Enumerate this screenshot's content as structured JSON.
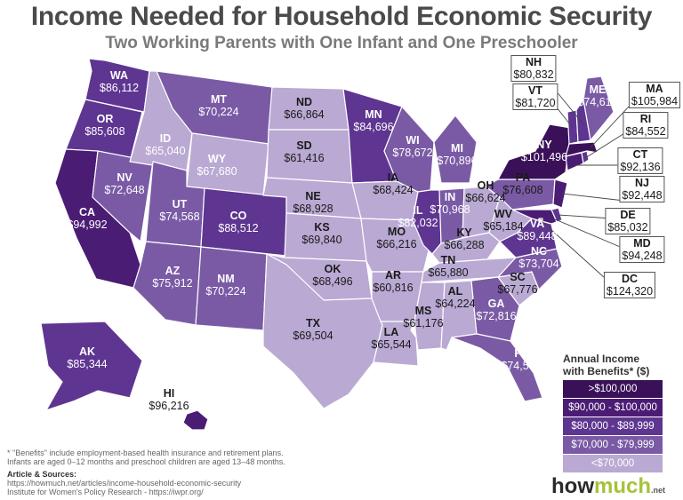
{
  "title": "Income Needed for Household Economic Security",
  "subtitle": "Two Working Parents with One Infant and One Preschooler",
  "colors": {
    "over100": "#3a1159",
    "90to100": "#4b1c74",
    "80to90": "#5e3590",
    "70to80": "#7a5aa5",
    "under70": "#b9a9d3"
  },
  "legend": {
    "title": "Annual Income with Benefits* ($)",
    "items": [
      {
        "label": ">$100,000",
        "color": "#3a1159"
      },
      {
        "label": "$90,000 - $100,000",
        "color": "#4b1c74"
      },
      {
        "label": "$80,000 - $89,999",
        "color": "#5e3590"
      },
      {
        "label": "$70,000 - $79,999",
        "color": "#7a5aa5"
      },
      {
        "label": "<$70,000",
        "color": "#b9a9d3"
      }
    ]
  },
  "states": {
    "WA": {
      "abbr": "WA",
      "value": "$86,112"
    },
    "OR": {
      "abbr": "OR",
      "value": "$85,608"
    },
    "CA": {
      "abbr": "CA",
      "value": "$94,992"
    },
    "NV": {
      "abbr": "NV",
      "value": "$72,648"
    },
    "ID": {
      "abbr": "ID",
      "value": "$65,040"
    },
    "MT": {
      "abbr": "MT",
      "value": "$70,224"
    },
    "WY": {
      "abbr": "WY",
      "value": "$67,680"
    },
    "UT": {
      "abbr": "UT",
      "value": "$74,568"
    },
    "CO": {
      "abbr": "CO",
      "value": "$88,512"
    },
    "AZ": {
      "abbr": "AZ",
      "value": "$75,912"
    },
    "NM": {
      "abbr": "NM",
      "value": "$70,224"
    },
    "ND": {
      "abbr": "ND",
      "value": "$66,864"
    },
    "SD": {
      "abbr": "SD",
      "value": "$61,416"
    },
    "NE": {
      "abbr": "NE",
      "value": "$68,928"
    },
    "KS": {
      "abbr": "KS",
      "value": "$69,840"
    },
    "OK": {
      "abbr": "OK",
      "value": "$68,496"
    },
    "TX": {
      "abbr": "TX",
      "value": "$69,504"
    },
    "MN": {
      "abbr": "MN",
      "value": "$84,696"
    },
    "IA": {
      "abbr": "IA",
      "value": "$68,424"
    },
    "MO": {
      "abbr": "MO",
      "value": "$66,216"
    },
    "AR": {
      "abbr": "AR",
      "value": "$60,816"
    },
    "LA": {
      "abbr": "LA",
      "value": "$65,544"
    },
    "WI": {
      "abbr": "WI",
      "value": "$78,672"
    },
    "IL": {
      "abbr": "IL",
      "value": "$82,032"
    },
    "MI": {
      "abbr": "MI",
      "value": "$70,896"
    },
    "IN": {
      "abbr": "IN",
      "value": "$70,968"
    },
    "OH": {
      "abbr": "OH",
      "value": "$66,624"
    },
    "KY": {
      "abbr": "KY",
      "value": "$66,288"
    },
    "TN": {
      "abbr": "TN",
      "value": "$65,880"
    },
    "MS": {
      "abbr": "MS",
      "value": "$61,176"
    },
    "AL": {
      "abbr": "AL",
      "value": "$64,224"
    },
    "GA": {
      "abbr": "GA",
      "value": "$72,816"
    },
    "FL": {
      "abbr": "FL",
      "value": "$74,568"
    },
    "SC": {
      "abbr": "SC",
      "value": "$67,776"
    },
    "NC": {
      "abbr": "NC",
      "value": "$73,704"
    },
    "VA": {
      "abbr": "VA",
      "value": "$89,448"
    },
    "WV": {
      "abbr": "WV",
      "value": "$65,184"
    },
    "PA": {
      "abbr": "PA",
      "value": "$76,608"
    },
    "NY": {
      "abbr": "NY",
      "value": "$101,496"
    },
    "ME": {
      "abbr": "ME",
      "value": "$74,616"
    },
    "NH": {
      "abbr": "NH",
      "value": "$80,832"
    },
    "VT": {
      "abbr": "VT",
      "value": "$81,720"
    },
    "MA": {
      "abbr": "MA",
      "value": "$105,984"
    },
    "RI": {
      "abbr": "RI",
      "value": "$84,552"
    },
    "CT": {
      "abbr": "CT",
      "value": "$92,136"
    },
    "NJ": {
      "abbr": "NJ",
      "value": "$92,448"
    },
    "DE": {
      "abbr": "DE",
      "value": "$85,032"
    },
    "MD": {
      "abbr": "MD",
      "value": "$94,248"
    },
    "DC": {
      "abbr": "DC",
      "value": "$124,320"
    },
    "AK": {
      "abbr": "AK",
      "value": "$85,344"
    },
    "HI": {
      "abbr": "HI",
      "value": "$96,216"
    }
  },
  "footnote": {
    "line1": "* \"Benefits\" include employment-based health insurance and retirement plans.",
    "line2": "Infants are aged 0–12 months and preschool children are aged 13–48 months.",
    "sources_title": "Article & Sources:",
    "source1": "https://howmuch.net/articles/income-household-economic-security",
    "source2": "Institute for Women's Policy Research - https://iwpr.org/"
  },
  "logo": {
    "main": "how",
    "accent": "much",
    "suffix": ".net"
  }
}
